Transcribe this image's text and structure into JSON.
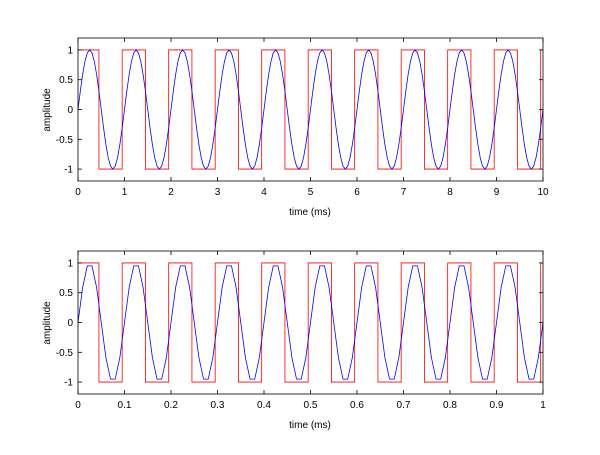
{
  "chart_data": [
    {
      "type": "line",
      "xlabel": "time (ms)",
      "ylabel": "amplitude",
      "xlim": [
        0,
        10
      ],
      "ylim": [
        -1.2,
        1.2
      ],
      "xticks": [
        0,
        1,
        2,
        3,
        4,
        5,
        6,
        7,
        8,
        9,
        10
      ],
      "xtick_labels": [
        "0",
        "1",
        "2",
        "3",
        "4",
        "5",
        "6",
        "7",
        "8",
        "9",
        "10"
      ],
      "yticks": [
        -1,
        -0.5,
        0,
        0.5,
        1
      ],
      "ytick_labels": [
        "-1",
        "-0.5",
        "0",
        "0.5",
        "1"
      ],
      "grid": false,
      "series": [
        {
          "color": "#ff0000",
          "x": [
            0,
            0.45,
            0.45,
            0.95,
            0.95,
            1.45,
            1.45,
            1.95,
            1.95,
            2.45,
            2.45,
            2.95,
            2.95,
            3.45,
            3.45,
            3.95,
            3.95,
            4.45,
            4.45,
            4.95,
            4.95,
            5.45,
            5.45,
            5.95,
            5.95,
            6.45,
            6.45,
            6.95,
            6.95,
            7.45,
            7.45,
            7.95,
            7.95,
            8.45,
            8.45,
            8.95,
            8.95,
            9.45,
            9.45,
            9.95,
            9.95,
            10
          ],
          "y": [
            1,
            1,
            -1,
            -1,
            1,
            1,
            -1,
            -1,
            1,
            1,
            -1,
            -1,
            1,
            1,
            -1,
            -1,
            1,
            1,
            -1,
            -1,
            1,
            1,
            -1,
            -1,
            1,
            1,
            -1,
            -1,
            1,
            1,
            -1,
            -1,
            1,
            1,
            -1,
            -1,
            1,
            1,
            -1,
            -1,
            1,
            1
          ]
        },
        {
          "color": "#0000ff",
          "x": [
            0,
            0.05,
            0.1,
            0.15,
            0.2,
            0.25,
            0.3,
            0.35,
            0.4,
            0.45,
            0.5,
            0.55,
            0.6,
            0.65,
            0.7,
            0.75,
            0.8,
            0.85,
            0.9,
            0.95,
            1.0,
            1.05,
            1.1,
            1.15,
            1.2,
            1.25,
            1.3,
            1.35,
            1.4,
            1.45,
            1.5,
            1.55,
            1.6,
            1.65,
            1.7,
            1.75,
            1.8,
            1.85,
            1.9,
            1.95,
            2.0,
            2.05,
            2.1,
            2.15,
            2.2,
            2.25,
            2.3,
            2.35,
            2.4,
            2.45,
            2.5,
            2.55,
            2.6,
            2.65,
            2.7,
            2.75,
            2.8,
            2.85,
            2.9,
            2.95,
            3.0,
            3.05,
            3.1,
            3.15,
            3.2,
            3.25,
            3.3,
            3.35,
            3.4,
            3.45,
            3.5,
            3.55,
            3.6,
            3.65,
            3.7,
            3.75,
            3.8,
            3.85,
            3.9,
            3.95,
            4.0,
            4.05,
            4.1,
            4.15,
            4.2,
            4.25,
            4.3,
            4.35,
            4.4,
            4.45,
            4.5,
            4.55,
            4.6,
            4.65,
            4.7,
            4.75,
            4.8,
            4.85,
            4.9,
            4.95,
            5.0,
            5.05,
            5.1,
            5.15,
            5.2,
            5.25,
            5.3,
            5.35,
            5.4,
            5.45,
            5.5,
            5.55,
            5.6,
            5.65,
            5.7,
            5.75,
            5.8,
            5.85,
            5.9,
            5.95,
            6.0,
            6.05,
            6.1,
            6.15,
            6.2,
            6.25,
            6.3,
            6.35,
            6.4,
            6.45,
            6.5,
            6.55,
            6.6,
            6.65,
            6.7,
            6.75,
            6.8,
            6.85,
            6.9,
            6.95,
            7.0,
            7.05,
            7.1,
            7.15,
            7.2,
            7.25,
            7.3,
            7.35,
            7.4,
            7.45,
            7.5,
            7.55,
            7.6,
            7.65,
            7.7,
            7.75,
            7.8,
            7.85,
            7.9,
            7.95,
            8.0,
            8.05,
            8.1,
            8.15,
            8.2,
            8.25,
            8.3,
            8.35,
            8.4,
            8.45,
            8.5,
            8.55,
            8.6,
            8.65,
            8.7,
            8.75,
            8.8,
            8.85,
            8.9,
            8.95,
            9.0,
            9.05,
            9.1,
            9.15,
            9.2,
            9.25,
            9.3,
            9.35,
            9.4,
            9.45,
            9.5,
            9.55,
            9.6,
            9.65,
            9.7,
            9.75,
            9.8,
            9.85,
            9.9,
            9.95,
            10.0
          ],
          "y": [
            0.0,
            0.309,
            0.588,
            0.809,
            0.951,
            1.0,
            0.951,
            0.809,
            0.588,
            0.309,
            0.0,
            -0.309,
            -0.588,
            -0.809,
            -0.951,
            -1.0,
            -0.951,
            -0.809,
            -0.588,
            -0.309,
            0.0,
            0.309,
            0.588,
            0.809,
            0.951,
            1.0,
            0.951,
            0.809,
            0.588,
            0.309,
            0.0,
            -0.309,
            -0.588,
            -0.809,
            -0.951,
            -1.0,
            -0.951,
            -0.809,
            -0.588,
            -0.309,
            0.0,
            0.309,
            0.588,
            0.809,
            0.951,
            1.0,
            0.951,
            0.809,
            0.588,
            0.309,
            0.0,
            -0.309,
            -0.588,
            -0.809,
            -0.951,
            -1.0,
            -0.951,
            -0.809,
            -0.588,
            -0.309,
            0.0,
            0.309,
            0.588,
            0.809,
            0.951,
            1.0,
            0.951,
            0.809,
            0.588,
            0.309,
            0.0,
            -0.309,
            -0.588,
            -0.809,
            -0.951,
            -1.0,
            -0.951,
            -0.809,
            -0.588,
            -0.309,
            0.0,
            0.309,
            0.588,
            0.809,
            0.951,
            1.0,
            0.951,
            0.809,
            0.588,
            0.309,
            0.0,
            -0.309,
            -0.588,
            -0.809,
            -0.951,
            -1.0,
            -0.951,
            -0.809,
            -0.588,
            -0.309,
            0.0,
            0.309,
            0.588,
            0.809,
            0.951,
            1.0,
            0.951,
            0.809,
            0.588,
            0.309,
            0.0,
            -0.309,
            -0.588,
            -0.809,
            -0.951,
            -1.0,
            -0.951,
            -0.809,
            -0.588,
            -0.309,
            0.0,
            0.309,
            0.588,
            0.809,
            0.951,
            1.0,
            0.951,
            0.809,
            0.588,
            0.309,
            0.0,
            -0.309,
            -0.588,
            -0.809,
            -0.951,
            -1.0,
            -0.951,
            -0.809,
            -0.588,
            -0.309,
            0.0,
            0.309,
            0.588,
            0.809,
            0.951,
            1.0,
            0.951,
            0.809,
            0.588,
            0.309,
            0.0,
            -0.309,
            -0.588,
            -0.809,
            -0.951,
            -1.0,
            -0.951,
            -0.809,
            -0.588,
            -0.309,
            0.0,
            0.309,
            0.588,
            0.809,
            0.951,
            1.0,
            0.951,
            0.809,
            0.588,
            0.309,
            0.0,
            -0.309,
            -0.588,
            -0.809,
            -0.951,
            -1.0,
            -0.951,
            -0.809,
            -0.588,
            -0.309,
            0.0,
            0.309,
            0.588,
            0.809,
            0.951,
            1.0,
            0.951,
            0.809,
            0.588,
            0.309,
            0.0,
            -0.309,
            -0.588,
            -0.809,
            -0.951,
            -1.0,
            -0.951,
            -0.809,
            -0.588,
            -0.309,
            0.0
          ]
        }
      ]
    },
    {
      "type": "line",
      "xlabel": "time (ms)",
      "ylabel": "amplitude",
      "xlim": [
        0,
        1
      ],
      "ylim": [
        -1.2,
        1.2
      ],
      "xticks": [
        0,
        0.1,
        0.2,
        0.3,
        0.4,
        0.5,
        0.6,
        0.7,
        0.8,
        0.9,
        1
      ],
      "xtick_labels": [
        "0",
        "0.1",
        "0.2",
        "0.3",
        "0.4",
        "0.5",
        "0.6",
        "0.7",
        "0.8",
        "0.9",
        "1"
      ],
      "yticks": [
        -1,
        -0.5,
        0,
        0.5,
        1
      ],
      "ytick_labels": [
        "-1",
        "-0.5",
        "0",
        "0.5",
        "1"
      ],
      "grid": false,
      "series": [
        {
          "color": "#ff0000",
          "x": [
            0,
            0.045,
            0.045,
            0.095,
            0.095,
            0.145,
            0.145,
            0.195,
            0.195,
            0.245,
            0.245,
            0.295,
            0.295,
            0.345,
            0.345,
            0.395,
            0.395,
            0.445,
            0.445,
            0.495,
            0.495,
            0.545,
            0.545,
            0.595,
            0.595,
            0.645,
            0.645,
            0.695,
            0.695,
            0.745,
            0.745,
            0.795,
            0.795,
            0.845,
            0.845,
            0.895,
            0.895,
            0.945,
            0.945,
            0.995,
            0.995,
            1
          ],
          "y": [
            1,
            1,
            -1,
            -1,
            1,
            1,
            -1,
            -1,
            1,
            1,
            -1,
            -1,
            1,
            1,
            -1,
            -1,
            1,
            1,
            -1,
            -1,
            1,
            1,
            -1,
            -1,
            1,
            1,
            -1,
            -1,
            1,
            1,
            -1,
            -1,
            1,
            1,
            -1,
            -1,
            1,
            1,
            -1,
            -1,
            1,
            1
          ]
        },
        {
          "color": "#0000ff",
          "x": [
            0,
            0.01,
            0.02,
            0.03,
            0.04,
            0.05,
            0.06,
            0.07,
            0.08,
            0.09,
            0.1,
            0.11,
            0.12,
            0.13,
            0.14,
            0.15,
            0.16,
            0.17,
            0.18,
            0.19,
            0.2,
            0.21,
            0.22,
            0.23,
            0.24,
            0.25,
            0.26,
            0.27,
            0.28,
            0.29,
            0.3,
            0.31,
            0.32,
            0.33,
            0.34,
            0.35,
            0.36,
            0.37,
            0.38,
            0.39,
            0.4,
            0.41,
            0.42,
            0.43,
            0.44,
            0.45,
            0.46,
            0.47,
            0.48,
            0.49,
            0.5,
            0.51,
            0.52,
            0.53,
            0.54,
            0.55,
            0.56,
            0.57,
            0.58,
            0.59,
            0.6,
            0.61,
            0.62,
            0.63,
            0.64,
            0.65,
            0.66,
            0.67,
            0.68,
            0.69,
            0.7,
            0.71,
            0.72,
            0.73,
            0.74,
            0.75,
            0.76,
            0.77,
            0.78,
            0.79,
            0.8,
            0.81,
            0.82,
            0.83,
            0.84,
            0.85,
            0.86,
            0.87,
            0.88,
            0.89,
            0.9,
            0.91,
            0.92,
            0.93,
            0.94,
            0.95,
            0.96,
            0.97,
            0.98,
            0.99,
            1.0
          ],
          "y": [
            0.0,
            0.588,
            0.951,
            0.951,
            0.588,
            0.0,
            -0.588,
            -0.951,
            -0.951,
            -0.588,
            0.0,
            0.588,
            0.951,
            0.951,
            0.588,
            0.0,
            -0.588,
            -0.951,
            -0.951,
            -0.588,
            0.0,
            0.588,
            0.951,
            0.951,
            0.588,
            0.0,
            -0.588,
            -0.951,
            -0.951,
            -0.588,
            0.0,
            0.588,
            0.951,
            0.951,
            0.588,
            0.0,
            -0.588,
            -0.951,
            -0.951,
            -0.588,
            0.0,
            0.588,
            0.951,
            0.951,
            0.588,
            0.0,
            -0.588,
            -0.951,
            -0.951,
            -0.588,
            0.0,
            0.588,
            0.951,
            0.951,
            0.588,
            0.0,
            -0.588,
            -0.951,
            -0.951,
            -0.588,
            0.0,
            0.588,
            0.951,
            0.951,
            0.588,
            0.0,
            -0.588,
            -0.951,
            -0.951,
            -0.588,
            0.0,
            0.588,
            0.951,
            0.951,
            0.588,
            0.0,
            -0.588,
            -0.951,
            -0.951,
            -0.588,
            0.0,
            0.588,
            0.951,
            0.951,
            0.588,
            0.0,
            -0.588,
            -0.951,
            -0.951,
            -0.588,
            0.0,
            0.588,
            0.951,
            0.951,
            0.588,
            0.0,
            -0.588,
            -0.951,
            -0.951,
            -0.588,
            0.0
          ]
        }
      ]
    }
  ]
}
